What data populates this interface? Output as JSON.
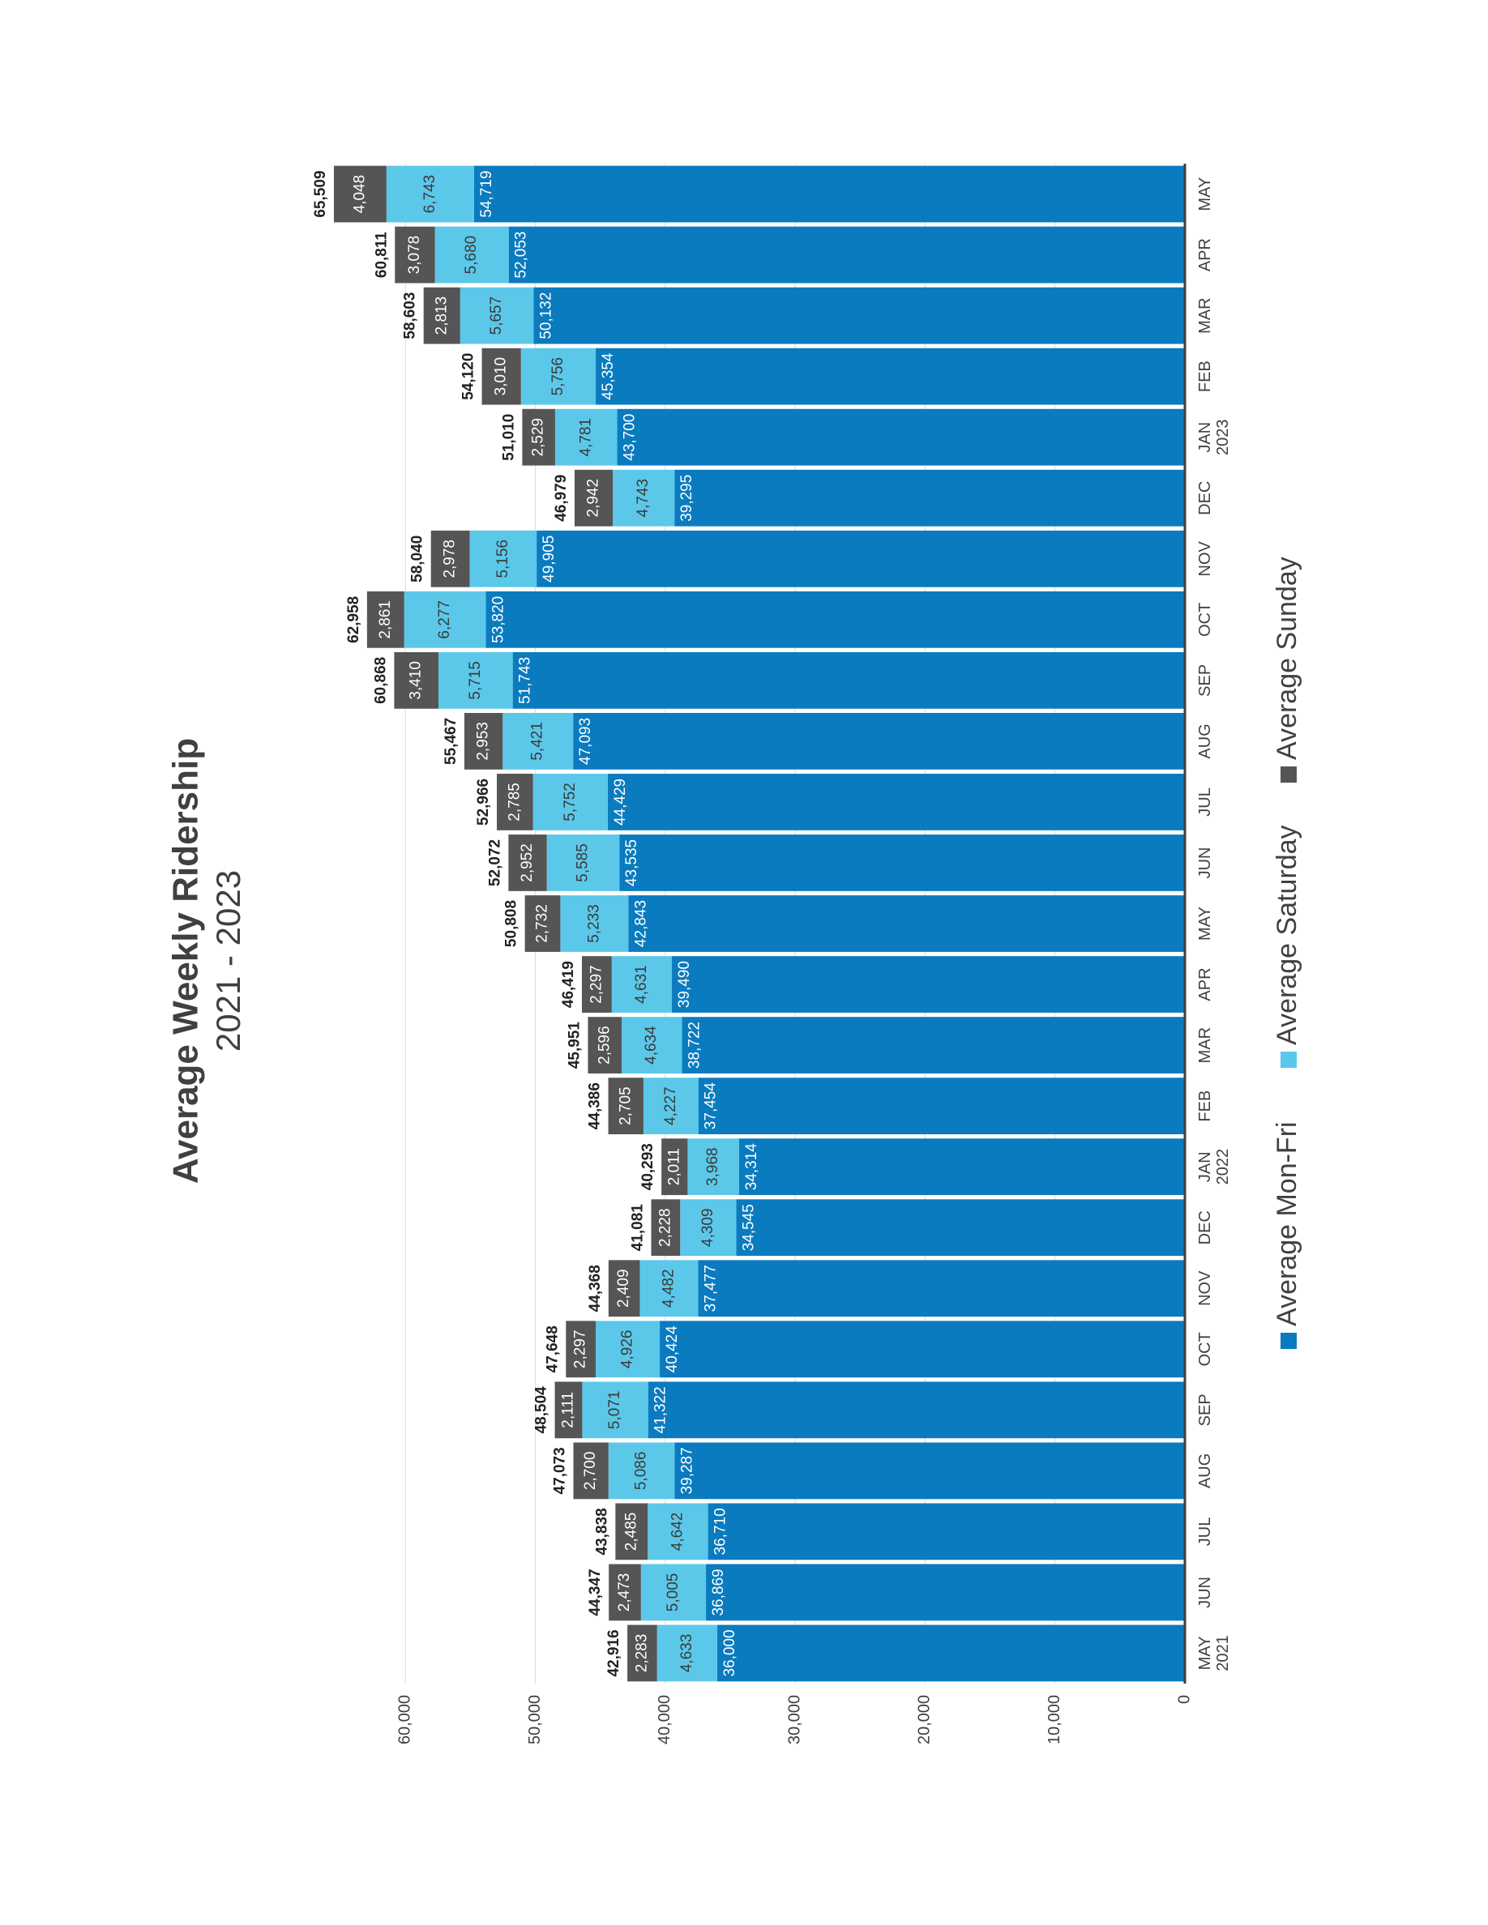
{
  "chart_data": {
    "type": "stacked_bar",
    "title": "Average Weekly Ridership",
    "subtitle": "2021 - 2023",
    "categories": [
      "MAY 2021",
      "JUN",
      "JUL",
      "AUG",
      "SEP",
      "OCT",
      "NOV",
      "DEC",
      "JAN 2022",
      "FEB",
      "MAR",
      "APR",
      "MAY",
      "JUN",
      "JUL",
      "AUG",
      "SEP",
      "OCT",
      "NOV",
      "DEC",
      "JAN 2023",
      "FEB",
      "MAR",
      "APR",
      "MAY"
    ],
    "series": [
      {
        "name": "Average Mon-Fri",
        "color": "#0a7bbf",
        "values": [
          36000,
          36869,
          36710,
          39287,
          41322,
          40424,
          37477,
          34545,
          34314,
          37454,
          38722,
          39490,
          42843,
          43535,
          44429,
          47093,
          51743,
          53820,
          49905,
          39295,
          43700,
          45354,
          50132,
          52053,
          54719
        ],
        "value_labels": [
          "36,000",
          "36,869",
          "36,710",
          "39,287",
          "41,322",
          "40,424",
          "37,477",
          "34,545",
          "34,314",
          "37,454",
          "38,722",
          "39,490",
          "42,843",
          "43,535",
          "44,429",
          "47,093",
          "51,743",
          "53,820",
          "49,905",
          "39,295",
          "43,700",
          "45,354",
          "50,132",
          "52,053",
          "54,719"
        ]
      },
      {
        "name": "Average Saturday",
        "color": "#5bc8ea",
        "values": [
          4633,
          5005,
          4642,
          5086,
          5071,
          4926,
          4482,
          4309,
          3968,
          4227,
          4634,
          4631,
          5233,
          5585,
          5752,
          5421,
          5715,
          6277,
          5156,
          4743,
          4781,
          5756,
          5657,
          5680,
          6743
        ],
        "value_labels": [
          "4,633",
          "5,005",
          "4,642",
          "5,086",
          "5,071",
          "4,926",
          "4,482",
          "4,309",
          "3,968",
          "4,227",
          "4,634",
          "4,631",
          "5,233",
          "5,585",
          "5,752",
          "5,421",
          "5,715",
          "6,277",
          "5,156",
          "4,743",
          "4,781",
          "5,756",
          "5,657",
          "5,680",
          "6,743"
        ]
      },
      {
        "name": "Average Sunday",
        "color": "#555555",
        "values": [
          2283,
          2473,
          2485,
          2700,
          2111,
          2297,
          2409,
          2228,
          2011,
          2705,
          2596,
          2297,
          2732,
          2952,
          2785,
          2953,
          3410,
          2861,
          2978,
          2942,
          2529,
          3010,
          2813,
          3078,
          4048
        ],
        "value_labels": [
          "2,283",
          "2,473",
          "2,485",
          "2,700",
          "2,111",
          "2,297",
          "2,409",
          "2,228",
          "2,011",
          "2,705",
          "2,596",
          "2,297",
          "2,732",
          "2,952",
          "2,785",
          "2,953",
          "3,410",
          "2,861",
          "2,978",
          "2,942",
          "2,529",
          "3,010",
          "2,813",
          "3,078",
          "4,048"
        ]
      }
    ],
    "totals": {
      "values": [
        42916,
        44347,
        43838,
        47073,
        48504,
        47648,
        44368,
        41081,
        40293,
        44386,
        45951,
        46419,
        50808,
        52072,
        52966,
        55467,
        60868,
        62958,
        58040,
        46979,
        51010,
        54120,
        58603,
        60811,
        65509
      ],
      "value_labels": [
        "42,916",
        "44,347",
        "43,838",
        "47,073",
        "48,504",
        "47,648",
        "44,368",
        "41,081",
        "40,293",
        "44,386",
        "45,951",
        "46,419",
        "50,808",
        "52,072",
        "52,966",
        "55,467",
        "60,868",
        "62,958",
        "58,040",
        "46,979",
        "51,010",
        "54,120",
        "58,603",
        "60,811",
        "65,509"
      ]
    },
    "ylim": [
      0,
      70000
    ],
    "yticks": [
      0,
      {
        "value": 10000,
        "label": "10,000"
      },
      {
        "value": 20000,
        "label": "20,000"
      },
      {
        "value": 30000,
        "label": "30,000"
      },
      {
        "value": 40000,
        "label": "40,000"
      },
      {
        "value": 50000,
        "label": "50,000"
      },
      {
        "value": 60000,
        "label": "60,000"
      }
    ],
    "grid": true,
    "legend": "bottom"
  }
}
